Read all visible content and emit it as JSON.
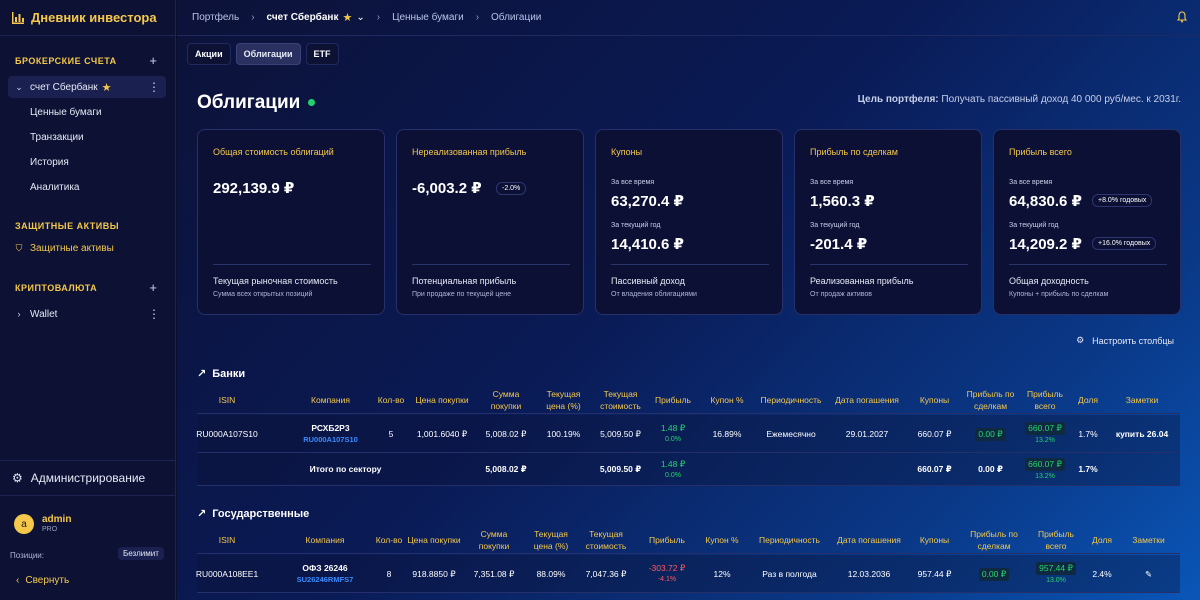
{
  "app": {
    "title": "Дневник инвестора"
  },
  "sidebar": {
    "brokerage_head": "БРОКЕРСКИЕ СЧЕТА",
    "account": "счет Сбербанк",
    "subitems": [
      "Ценные бумаги",
      "Транзакции",
      "История",
      "Аналитика"
    ],
    "protective_head": "ЗАЩИТНЫЕ АКТИВЫ",
    "protective_item": "Защитные активы",
    "crypto_head": "КРИПТОВАЛЮТА",
    "wallet": "Wallet",
    "admin_link": "Администрирование",
    "user": {
      "initial": "a",
      "name": "admin",
      "plan": "PRO"
    },
    "positions_label": "Позиции:",
    "positions_value": "Безлимит",
    "collapse": "Свернуть"
  },
  "breadcrumb": [
    "Портфель",
    "счет Сбербанк",
    "Ценные бумаги",
    "Облигации"
  ],
  "tabs": [
    "Акции",
    "Облигации",
    "ETF"
  ],
  "page": {
    "title": "Облигации",
    "goal_label": "Цель портфеля:",
    "goal_text": "Получать пассивный доход 40 000 руб/мес. к 2031г."
  },
  "cards": [
    {
      "title": "Общая стоимость облигаций",
      "value": "292,139.9 ₽",
      "foot_title": "Текущая рыночная стоимость",
      "foot_sub": "Сумма всех открытых позиций"
    },
    {
      "title": "Нереализованная прибыль",
      "value": "-6,003.2 ₽",
      "pill": "-2.0%",
      "foot_title": "Потенциальная прибыль",
      "foot_sub": "При продаже по текущей цене"
    },
    {
      "title": "Купоны",
      "l1": "За все время",
      "v1": "63,270.4 ₽",
      "l2": "За текущий год",
      "v2": "14,410.6 ₽",
      "foot_title": "Пассивный доход",
      "foot_sub": "От владения облигациями"
    },
    {
      "title": "Прибыль по сделкам",
      "l1": "За все время",
      "v1": "1,560.3 ₽",
      "l2": "За текущий год",
      "v2": "-201.4 ₽",
      "foot_title": "Реализованная прибыль",
      "foot_sub": "От продаж активов"
    },
    {
      "title": "Прибыль всего",
      "l1": "За все время",
      "v1": "64,830.6 ₽",
      "p1": "+8.0% годовых",
      "l2": "За текущий год",
      "v2": "14,209.2 ₽",
      "p2": "+16.0% годовых",
      "foot_title": "Общая доходность",
      "foot_sub": "Купоны + прибыль по сделкам"
    }
  ],
  "config_label": "Настроить столбцы",
  "headers": [
    "ISIN",
    "Компания",
    "Кол-во",
    "Цена покупки",
    "Сумма покупки",
    "Текущая цена (%)",
    "Текущая стоимость",
    "Прибыль",
    "Купон %",
    "Периодичность",
    "Дата погашения",
    "Купоны",
    "Прибыль по сделкам",
    "Прибыль всего",
    "Доля",
    "Заметки"
  ],
  "banks": {
    "title": "Банки",
    "row": {
      "isin": "RU000A107S10",
      "company": "РСХБ2Р3",
      "company_code": "RU000A107S10",
      "qty": "5",
      "buy_price": "1,001.6040 ₽",
      "buy_sum": "5,008.02 ₽",
      "cur_price": "100.19%",
      "cur_value": "5,009.50 ₽",
      "profit": "1.48 ₽",
      "profit_pct": "0.0%",
      "coupon": "16.89%",
      "period": "Ежемесячно",
      "maturity": "29.01.2027",
      "coupons": "660.07 ₽",
      "deal_profit": "0.00 ₽",
      "total_profit": "660.07 ₽",
      "total_pct": "13.2%",
      "share": "1.7%",
      "note": "купить 26.04"
    },
    "total": {
      "label": "Итого по сектору",
      "buy_sum": "5,008.02 ₽",
      "cur_value": "5,009.50 ₽",
      "profit": "1.48 ₽",
      "profit_pct": "0.0%",
      "coupons": "660.07 ₽",
      "deal_profit": "0.00 ₽",
      "total_profit": "660.07 ₽",
      "total_pct": "13.2%",
      "share": "1.7%"
    }
  },
  "gov": {
    "title": "Государственные",
    "row": {
      "isin": "RU000A108EE1",
      "company": "ОФЗ 26246",
      "company_code": "SU26246RMFS7",
      "qty": "8",
      "buy_price": "918.8850 ₽",
      "buy_sum": "7,351.08 ₽",
      "cur_price": "88.09%",
      "cur_value": "7,047.36 ₽",
      "profit": "-303.72 ₽",
      "profit_pct": "-4.1%",
      "coupon": "12%",
      "period": "Раз в полгода",
      "maturity": "12.03.2036",
      "coupons": "957.44 ₽",
      "deal_profit": "0.00 ₽",
      "total_profit": "957.44 ₽",
      "total_pct": "13.0%",
      "share": "2.4%"
    }
  }
}
